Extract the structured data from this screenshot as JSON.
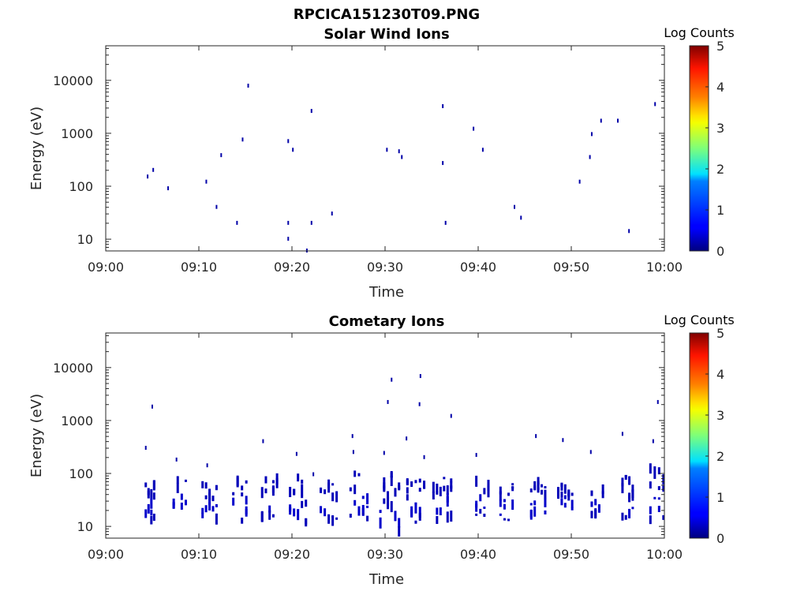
{
  "figure": {
    "title": "RPCICA151230T09.PNG"
  },
  "charts": [
    {
      "title": "Solar Wind Ions",
      "colorbar_label": "Log Counts"
    },
    {
      "title": "Cometary Ions",
      "colorbar_label": "Log Counts"
    }
  ],
  "chart_data": [
    {
      "type": "heatmap",
      "title": "Solar Wind Ions",
      "xlabel": "Time",
      "ylabel": "Energy (eV)",
      "x_ticks": [
        "09:00",
        "09:10",
        "09:20",
        "09:30",
        "09:40",
        "09:50",
        "10:00"
      ],
      "x_tick_minutes": [
        0,
        10,
        20,
        30,
        40,
        50,
        60
      ],
      "xlim_minutes": [
        0,
        60
      ],
      "y_scale": "log",
      "y_ticks": [
        "10",
        "100",
        "1000",
        "10000"
      ],
      "y_tick_values": [
        10,
        100,
        1000,
        10000
      ],
      "ylim": [
        6,
        45000
      ],
      "colorbar": {
        "label": "Log Counts",
        "range": [
          0,
          5
        ],
        "ticks": [
          0,
          1,
          2,
          3,
          4,
          5
        ],
        "colormap": "jet"
      },
      "points": [
        [
          4.5,
          150,
          0.2
        ],
        [
          5.1,
          200,
          0.2
        ],
        [
          6.7,
          90,
          0.2
        ],
        [
          10.8,
          120,
          0.2
        ],
        [
          11.9,
          40,
          0.2
        ],
        [
          12.4,
          380,
          0.2
        ],
        [
          14.1,
          20,
          0.2
        ],
        [
          14.7,
          750,
          0.2
        ],
        [
          15.3,
          7800,
          0.2
        ],
        [
          19.6,
          700,
          0.2
        ],
        [
          19.6,
          20,
          0.2
        ],
        [
          19.6,
          10,
          0.2
        ],
        [
          20.1,
          480,
          0.2
        ],
        [
          21.6,
          6,
          0.2
        ],
        [
          22.1,
          2600,
          0.2
        ],
        [
          22.1,
          20,
          0.2
        ],
        [
          24.3,
          30,
          0.2
        ],
        [
          30.2,
          480,
          0.2
        ],
        [
          31.5,
          450,
          0.2
        ],
        [
          31.8,
          350,
          0.2
        ],
        [
          36.2,
          3200,
          0.2
        ],
        [
          36.2,
          270,
          0.2
        ],
        [
          36.5,
          20,
          0.2
        ],
        [
          39.5,
          1200,
          0.2
        ],
        [
          40.5,
          480,
          0.2
        ],
        [
          43.9,
          40,
          0.2
        ],
        [
          44.6,
          25,
          0.2
        ],
        [
          50.9,
          120,
          0.2
        ],
        [
          52.0,
          350,
          0.2
        ],
        [
          52.2,
          950,
          0.2
        ],
        [
          53.2,
          1700,
          0.2
        ],
        [
          55.0,
          1700,
          0.2
        ],
        [
          56.2,
          14,
          0.2
        ],
        [
          59.0,
          3500,
          0.2
        ]
      ]
    },
    {
      "type": "heatmap",
      "title": "Cometary Ions",
      "xlabel": "Time",
      "ylabel": "Energy (eV)",
      "x_ticks": [
        "09:00",
        "09:10",
        "09:20",
        "09:30",
        "09:40",
        "09:50",
        "10:00"
      ],
      "x_tick_minutes": [
        0,
        10,
        20,
        30,
        40,
        50,
        60
      ],
      "xlim_minutes": [
        0,
        60
      ],
      "y_scale": "log",
      "y_ticks": [
        "10",
        "100",
        "1000",
        "10000"
      ],
      "y_tick_values": [
        10,
        100,
        1000,
        10000
      ],
      "ylim": [
        6,
        45000
      ],
      "colorbar": {
        "label": "Log Counts",
        "range": [
          0,
          5
        ],
        "ticks": [
          0,
          1,
          2,
          3,
          4,
          5
        ],
        "colormap": "jet"
      },
      "points": [
        [
          5.0,
          1800,
          0.2
        ],
        [
          4.3,
          300,
          0.2
        ],
        [
          7.6,
          180,
          0.2
        ],
        [
          10.9,
          140,
          0.2
        ],
        [
          16.9,
          400,
          0.2
        ],
        [
          20.5,
          230,
          0.2
        ],
        [
          22.3,
          95,
          0.2
        ],
        [
          26.5,
          500,
          0.2
        ],
        [
          26.6,
          250,
          0.2
        ],
        [
          29.9,
          240,
          0.2
        ],
        [
          30.3,
          2200,
          0.2
        ],
        [
          30.7,
          5800,
          0.2
        ],
        [
          32.3,
          450,
          0.2
        ],
        [
          33.7,
          2000,
          0.2
        ],
        [
          33.8,
          6800,
          0.2
        ],
        [
          34.2,
          200,
          0.2
        ],
        [
          37.1,
          1200,
          0.2
        ],
        [
          39.8,
          220,
          0.2
        ],
        [
          46.2,
          500,
          0.2
        ],
        [
          49.1,
          420,
          0.2
        ],
        [
          52.1,
          250,
          0.2
        ],
        [
          55.5,
          550,
          0.2
        ],
        [
          59.3,
          2200,
          0.2
        ],
        [
          58.8,
          400,
          0.2
        ]
      ],
      "clusters": [
        {
          "t_start": 4.3,
          "t_end": 5.2,
          "e_min": 12,
          "e_max": 70,
          "level": 0.3
        },
        {
          "t_start": 7.3,
          "t_end": 8.6,
          "e_min": 15,
          "e_max": 85,
          "level": 0.3
        },
        {
          "t_start": 10.4,
          "t_end": 11.9,
          "e_min": 12,
          "e_max": 70,
          "level": 0.3
        },
        {
          "t_start": 13.7,
          "t_end": 15.1,
          "e_min": 12,
          "e_max": 85,
          "level": 0.3
        },
        {
          "t_start": 16.8,
          "t_end": 18.4,
          "e_min": 15,
          "e_max": 80,
          "level": 0.3
        },
        {
          "t_start": 19.8,
          "t_end": 21.5,
          "e_min": 8,
          "e_max": 85,
          "level": 0.3
        },
        {
          "t_start": 23.1,
          "t_end": 24.8,
          "e_min": 12,
          "e_max": 75,
          "level": 0.3
        },
        {
          "t_start": 26.3,
          "t_end": 28.1,
          "e_min": 12,
          "e_max": 100,
          "level": 0.3
        },
        {
          "t_start": 29.5,
          "t_end": 31.5,
          "e_min": 6,
          "e_max": 100,
          "level": 0.3
        },
        {
          "t_start": 32.4,
          "t_end": 34.2,
          "e_min": 12,
          "e_max": 90,
          "level": 0.3
        },
        {
          "t_start": 35.2,
          "t_end": 37.1,
          "e_min": 12,
          "e_max": 100,
          "level": 0.3
        },
        {
          "t_start": 39.8,
          "t_end": 41.1,
          "e_min": 15,
          "e_max": 90,
          "level": 0.3
        },
        {
          "t_start": 42.4,
          "t_end": 43.7,
          "e_min": 12,
          "e_max": 80,
          "level": 0.3
        },
        {
          "t_start": 45.7,
          "t_end": 47.2,
          "e_min": 12,
          "e_max": 75,
          "level": 0.3
        },
        {
          "t_start": 48.6,
          "t_end": 50.1,
          "e_min": 15,
          "e_max": 85,
          "level": 0.3
        },
        {
          "t_start": 52.2,
          "t_end": 53.4,
          "e_min": 15,
          "e_max": 75,
          "level": 0.3
        },
        {
          "t_start": 55.5,
          "t_end": 56.6,
          "e_min": 12,
          "e_max": 90,
          "level": 0.3
        },
        {
          "t_start": 58.5,
          "t_end": 59.9,
          "e_min": 12,
          "e_max": 130,
          "level": 0.3
        }
      ]
    }
  ]
}
